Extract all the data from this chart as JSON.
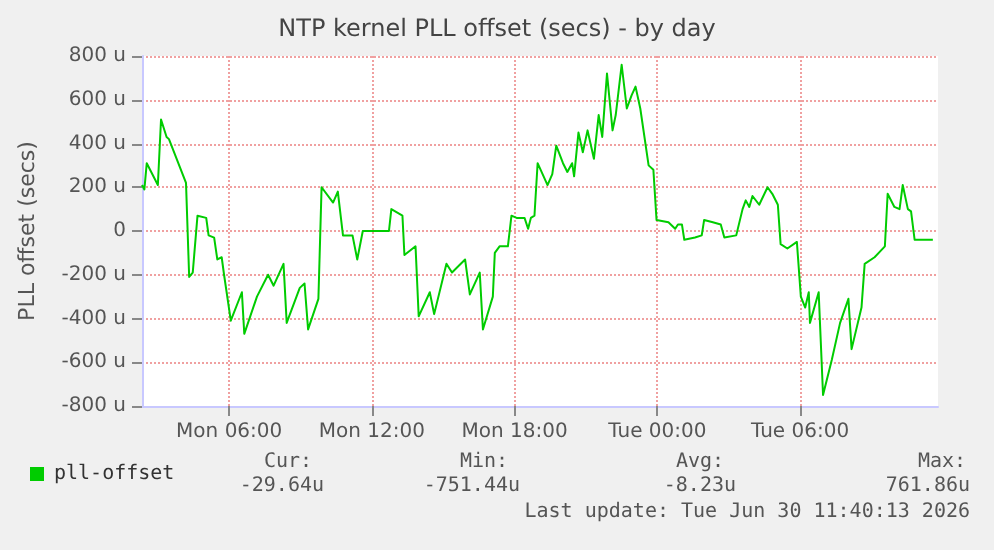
{
  "chart_data": {
    "type": "line",
    "title": "NTP kernel PLL offset (secs) - by day",
    "ylabel": "PLL offset (secs)",
    "series": [
      {
        "name": "pll-offset",
        "color": "#00cc00",
        "x": [
          "2026-06-29T02:20",
          "2026-06-29T02:26",
          "2026-06-29T02:32",
          "2026-06-29T03:00",
          "2026-06-29T03:08",
          "2026-06-29T03:22",
          "2026-06-29T03:28",
          "2026-06-29T04:11",
          "2026-06-29T04:19",
          "2026-06-29T04:28",
          "2026-06-29T04:40",
          "2026-06-29T05:02",
          "2026-06-29T05:08",
          "2026-06-29T05:22",
          "2026-06-29T05:30",
          "2026-06-29T05:41",
          "2026-06-29T05:47",
          "2026-06-29T06:04",
          "2026-06-29T06:32",
          "2026-06-29T06:38",
          "2026-06-29T07:10",
          "2026-06-29T07:38",
          "2026-06-29T07:52",
          "2026-06-29T08:17",
          "2026-06-29T08:25",
          "2026-06-29T08:58",
          "2026-06-29T09:10",
          "2026-06-29T09:19",
          "2026-06-29T09:45",
          "2026-06-29T09:53",
          "2026-06-29T10:22",
          "2026-06-29T10:34",
          "2026-06-29T10:47",
          "2026-06-29T11:11",
          "2026-06-29T11:23",
          "2026-06-29T11:37",
          "2026-06-29T12:43",
          "2026-06-29T12:49",
          "2026-06-29T13:17",
          "2026-06-29T13:22",
          "2026-06-29T13:50",
          "2026-06-29T13:58",
          "2026-06-29T14:26",
          "2026-06-29T14:37",
          "2026-06-29T15:08",
          "2026-06-29T15:22",
          "2026-06-29T15:55",
          "2026-06-29T16:07",
          "2026-06-29T16:32",
          "2026-06-29T16:40",
          "2026-06-29T17:05",
          "2026-06-29T17:10",
          "2026-06-29T17:22",
          "2026-06-29T17:43",
          "2026-06-29T17:52",
          "2026-06-29T18:05",
          "2026-06-29T18:25",
          "2026-06-29T18:34",
          "2026-06-29T18:41",
          "2026-06-29T18:50",
          "2026-06-29T18:58",
          "2026-06-29T19:23",
          "2026-06-29T19:35",
          "2026-06-29T19:45",
          "2026-06-29T20:02",
          "2026-06-29T20:13",
          "2026-06-29T20:25",
          "2026-06-29T20:30",
          "2026-06-29T20:41",
          "2026-06-29T20:52",
          "2026-06-29T21:04",
          "2026-06-29T21:20",
          "2026-06-29T21:32",
          "2026-06-29T21:41",
          "2026-06-29T21:53",
          "2026-06-29T22:07",
          "2026-06-29T22:15",
          "2026-06-29T22:30",
          "2026-06-29T22:43",
          "2026-06-29T22:55",
          "2026-06-29T23:05",
          "2026-06-29T23:17",
          "2026-06-29T23:38",
          "2026-06-29T23:50",
          "2026-06-29T23:58",
          "2026-06-30T00:28",
          "2026-06-30T00:45",
          "2026-06-30T00:52",
          "2026-06-30T01:02",
          "2026-06-30T01:08",
          "2026-06-30T01:35",
          "2026-06-30T01:52",
          "2026-06-30T01:58",
          "2026-06-30T02:20",
          "2026-06-30T02:40",
          "2026-06-30T02:49",
          "2026-06-30T03:19",
          "2026-06-30T03:35",
          "2026-06-30T03:43",
          "2026-06-30T03:52",
          "2026-06-30T04:00",
          "2026-06-30T04:17",
          "2026-06-30T04:38",
          "2026-06-30T04:50",
          "2026-06-30T05:04",
          "2026-06-30T05:11",
          "2026-06-30T05:28",
          "2026-06-30T05:52",
          "2026-06-30T06:02",
          "2026-06-30T06:13",
          "2026-06-30T06:22",
          "2026-06-30T06:25",
          "2026-06-30T06:47",
          "2026-06-30T06:58",
          "2026-06-30T07:20",
          "2026-06-30T07:41",
          "2026-06-30T08:02",
          "2026-06-30T08:10",
          "2026-06-30T08:35",
          "2026-06-30T08:43",
          "2026-06-30T09:08",
          "2026-06-30T09:34",
          "2026-06-30T09:41",
          "2026-06-30T09:58",
          "2026-06-30T10:11",
          "2026-06-30T10:19",
          "2026-06-30T10:32",
          "2026-06-30T10:40",
          "2026-06-30T10:49",
          "2026-06-30T11:35"
        ],
        "values": [
          210,
          190,
          310,
          210,
          510,
          430,
          420,
          220,
          -210,
          -190,
          70,
          60,
          -20,
          -30,
          -130,
          -120,
          -200,
          -410,
          -280,
          -470,
          -300,
          -200,
          -250,
          -150,
          -420,
          -260,
          -240,
          -450,
          -310,
          200,
          130,
          180,
          -20,
          -20,
          -130,
          0,
          0,
          100,
          70,
          -110,
          -70,
          -390,
          -280,
          -380,
          -150,
          -190,
          -130,
          -290,
          -190,
          -450,
          -300,
          -100,
          -70,
          -70,
          70,
          60,
          60,
          10,
          60,
          70,
          310,
          210,
          260,
          390,
          310,
          270,
          310,
          250,
          450,
          360,
          460,
          330,
          530,
          430,
          720,
          460,
          530,
          760,
          560,
          620,
          660,
          560,
          300,
          280,
          50,
          40,
          10,
          30,
          30,
          -40,
          -30,
          -20,
          50,
          40,
          30,
          -30,
          -20,
          100,
          140,
          110,
          160,
          120,
          200,
          170,
          120,
          -60,
          -80,
          -50,
          -300,
          -350,
          -280,
          -420,
          -280,
          -750,
          -590,
          -420,
          -310,
          -540,
          -350,
          -150,
          -120,
          -70,
          170,
          110,
          100,
          210,
          100,
          90,
          -40,
          -40
        ]
      }
    ],
    "xlim": [
      "2026-06-29T02:20",
      "2026-06-30T11:48"
    ],
    "xticks": [
      {
        "value": "2026-06-29T06:00",
        "label": "Mon 06:00"
      },
      {
        "value": "2026-06-29T12:00",
        "label": "Mon 12:00"
      },
      {
        "value": "2026-06-29T18:00",
        "label": "Mon 18:00"
      },
      {
        "value": "2026-06-30T00:00",
        "label": "Tue 00:00"
      },
      {
        "value": "2026-06-30T06:00",
        "label": "Tue 06:00"
      }
    ],
    "ylim": [
      -800,
      800
    ],
    "yticks": [
      {
        "value": -800,
        "label": "-800 u"
      },
      {
        "value": -600,
        "label": "-600 u"
      },
      {
        "value": -400,
        "label": "-400 u"
      },
      {
        "value": -200,
        "label": "-200 u"
      },
      0,
      {
        "value": 200,
        "label": "200 u"
      },
      {
        "value": 400,
        "label": "400 u"
      },
      {
        "value": 600,
        "label": "600 u"
      },
      {
        "value": 800,
        "label": "800 u"
      }
    ],
    "grid": true,
    "legend": "bottom left",
    "marker": "none",
    "line_style": "solid",
    "annotations": [
      "Cur:",
      "Min:",
      "Avg:",
      "Max:",
      "-29.64u",
      "-751.44u",
      "-8.23u",
      "761.86u",
      "Last update: Tue Jun 30 11:40:13 2026"
    ]
  }
}
